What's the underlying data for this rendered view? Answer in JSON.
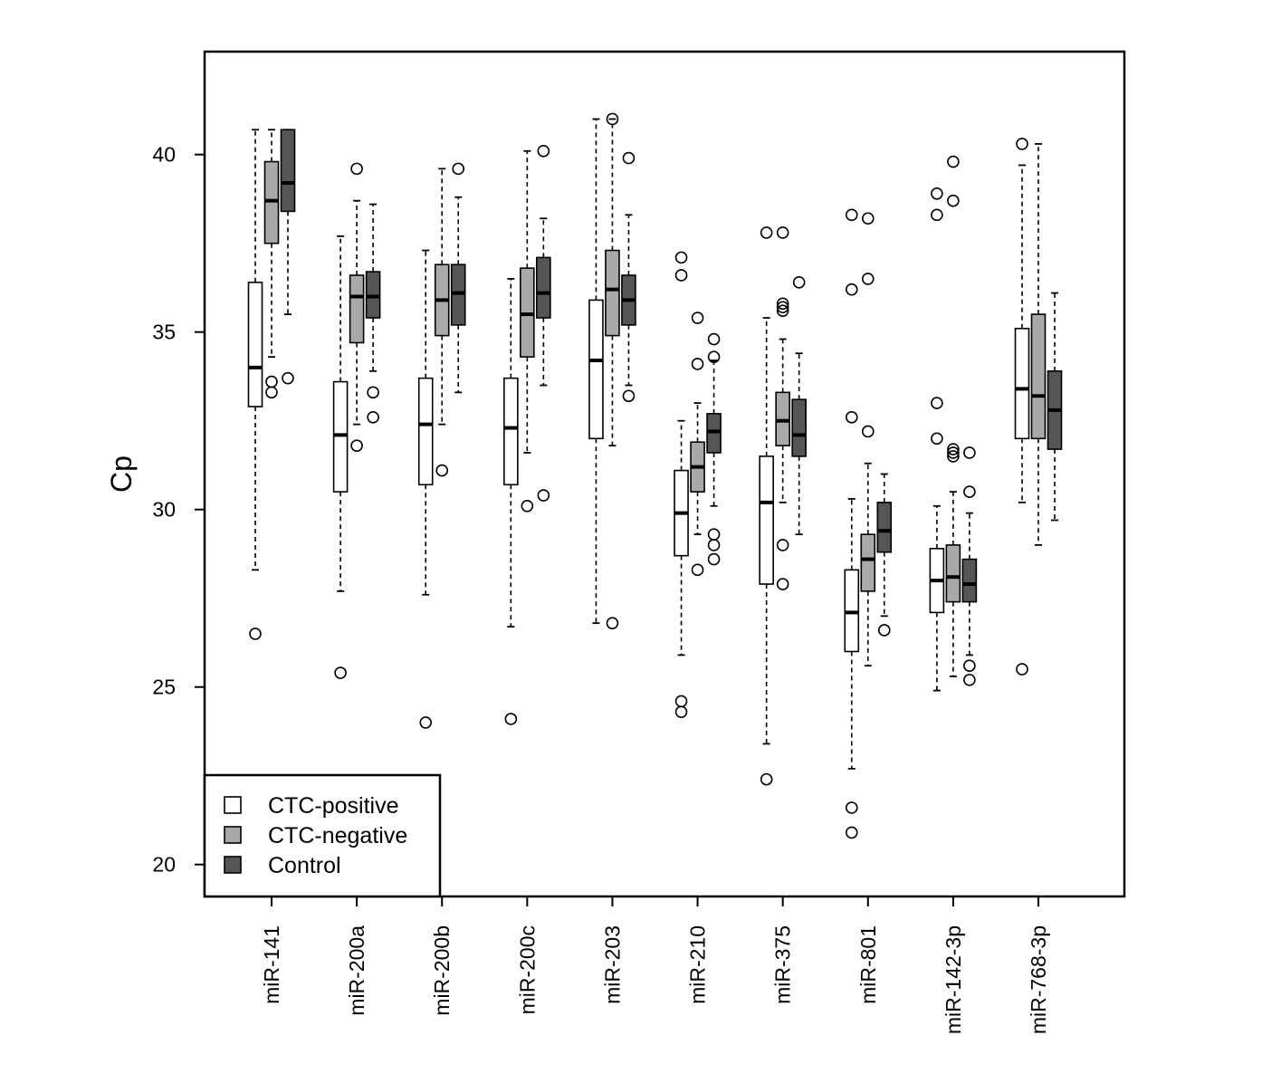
{
  "chart_data": {
    "type": "boxplot",
    "title": "",
    "xlabel": "",
    "ylabel": "Cp",
    "ylim": [
      19.1,
      42.9
    ],
    "yticks": [
      20,
      25,
      30,
      35,
      40
    ],
    "grid": false,
    "legend_position": "bottom-left",
    "categories": [
      "miR-141",
      "miR-200a",
      "miR-200b",
      "miR-200c",
      "miR-203",
      "miR-210",
      "miR-375",
      "miR-801",
      "miR-142-3p",
      "miR-768-3p"
    ],
    "series": [
      {
        "name": "CTC-positive",
        "color": "#ffffff",
        "boxes": [
          {
            "whislo": 28.3,
            "q1": 32.9,
            "med": 34.0,
            "q3": 36.4,
            "whishi": 40.7,
            "fliers": [
              26.5
            ]
          },
          {
            "whislo": 27.7,
            "q1": 30.5,
            "med": 32.1,
            "q3": 33.6,
            "whishi": 37.7,
            "fliers": [
              25.4
            ]
          },
          {
            "whislo": 27.6,
            "q1": 30.7,
            "med": 32.4,
            "q3": 33.7,
            "whishi": 37.3,
            "fliers": [
              24.0
            ]
          },
          {
            "whislo": 26.7,
            "q1": 30.7,
            "med": 32.3,
            "q3": 33.7,
            "whishi": 36.5,
            "fliers": [
              24.1
            ]
          },
          {
            "whislo": 26.8,
            "q1": 32.0,
            "med": 34.2,
            "q3": 35.9,
            "whishi": 41.0,
            "fliers": []
          },
          {
            "whislo": 25.9,
            "q1": 28.7,
            "med": 29.9,
            "q3": 31.1,
            "whishi": 32.5,
            "fliers": [
              24.6,
              24.3,
              36.6,
              37.1
            ]
          },
          {
            "whislo": 23.4,
            "q1": 27.9,
            "med": 30.2,
            "q3": 31.5,
            "whishi": 35.4,
            "fliers": [
              22.4,
              37.8
            ]
          },
          {
            "whislo": 22.7,
            "q1": 26.0,
            "med": 27.1,
            "q3": 28.3,
            "whishi": 30.3,
            "fliers": [
              21.6,
              20.9,
              32.6,
              36.2,
              38.3
            ]
          },
          {
            "whislo": 24.9,
            "q1": 27.1,
            "med": 28.0,
            "q3": 28.9,
            "whishi": 30.1,
            "fliers": [
              32.0,
              33.0,
              38.3,
              38.9
            ]
          },
          {
            "whislo": 30.2,
            "q1": 32.0,
            "med": 33.4,
            "q3": 35.1,
            "whishi": 39.7,
            "fliers": [
              25.5,
              40.3
            ]
          }
        ]
      },
      {
        "name": "CTC-negative",
        "color": "#a9a9a9",
        "boxes": [
          {
            "whislo": 34.3,
            "q1": 37.5,
            "med": 38.7,
            "q3": 39.8,
            "whishi": 40.7,
            "fliers": [
              33.6,
              33.3
            ]
          },
          {
            "whislo": 32.4,
            "q1": 34.7,
            "med": 36.0,
            "q3": 36.6,
            "whishi": 38.7,
            "fliers": [
              31.8,
              39.6
            ]
          },
          {
            "whislo": 32.4,
            "q1": 34.9,
            "med": 35.9,
            "q3": 36.9,
            "whishi": 39.6,
            "fliers": [
              31.1
            ]
          },
          {
            "whislo": 31.6,
            "q1": 34.3,
            "med": 35.5,
            "q3": 36.8,
            "whishi": 40.1,
            "fliers": [
              30.1
            ]
          },
          {
            "whislo": 31.8,
            "q1": 34.9,
            "med": 36.2,
            "q3": 37.3,
            "whishi": 41.0,
            "fliers": [
              26.8,
              41.0
            ]
          },
          {
            "whislo": 29.3,
            "q1": 30.5,
            "med": 31.2,
            "q3": 31.9,
            "whishi": 33.0,
            "fliers": [
              28.3,
              34.1,
              35.4
            ]
          },
          {
            "whislo": 30.2,
            "q1": 31.8,
            "med": 32.5,
            "q3": 33.3,
            "whishi": 34.8,
            "fliers": [
              29.0,
              27.9,
              35.6,
              35.7,
              35.8,
              37.8
            ]
          },
          {
            "whislo": 25.6,
            "q1": 27.7,
            "med": 28.6,
            "q3": 29.3,
            "whishi": 31.3,
            "fliers": [
              32.2,
              36.5,
              38.2
            ]
          },
          {
            "whislo": 25.3,
            "q1": 27.4,
            "med": 28.1,
            "q3": 29.0,
            "whishi": 30.5,
            "fliers": [
              31.5,
              31.6,
              31.7,
              38.7,
              39.8
            ]
          },
          {
            "whislo": 29.0,
            "q1": 32.0,
            "med": 33.2,
            "q3": 35.5,
            "whishi": 40.3,
            "fliers": []
          }
        ]
      },
      {
        "name": "Control",
        "color": "#555555",
        "boxes": [
          {
            "whislo": 35.5,
            "q1": 38.4,
            "med": 39.2,
            "q3": 40.7,
            "whishi": 40.7,
            "fliers": [
              33.7
            ]
          },
          {
            "whislo": 33.9,
            "q1": 35.4,
            "med": 36.0,
            "q3": 36.7,
            "whishi": 38.6,
            "fliers": [
              33.3,
              32.6
            ]
          },
          {
            "whislo": 33.3,
            "q1": 35.2,
            "med": 36.1,
            "q3": 36.9,
            "whishi": 38.8,
            "fliers": [
              39.6
            ]
          },
          {
            "whislo": 33.5,
            "q1": 35.4,
            "med": 36.1,
            "q3": 37.1,
            "whishi": 38.2,
            "fliers": [
              30.4,
              40.1
            ]
          },
          {
            "whislo": 33.5,
            "q1": 35.2,
            "med": 35.9,
            "q3": 36.6,
            "whishi": 38.3,
            "fliers": [
              33.2,
              39.9
            ]
          },
          {
            "whislo": 30.1,
            "q1": 31.6,
            "med": 32.2,
            "q3": 32.7,
            "whishi": 34.2,
            "fliers": [
              29.3,
              29.0,
              28.6,
              34.3,
              34.8
            ]
          },
          {
            "whislo": 29.3,
            "q1": 31.5,
            "med": 32.1,
            "q3": 33.1,
            "whishi": 34.4,
            "fliers": [
              36.4
            ]
          },
          {
            "whislo": 27.0,
            "q1": 28.8,
            "med": 29.4,
            "q3": 30.2,
            "whishi": 31.0,
            "fliers": [
              26.6
            ]
          },
          {
            "whislo": 25.9,
            "q1": 27.4,
            "med": 27.9,
            "q3": 28.6,
            "whishi": 29.9,
            "fliers": [
              25.6,
              25.2,
              30.5,
              31.6
            ]
          },
          {
            "whislo": 29.7,
            "q1": 31.7,
            "med": 32.8,
            "q3": 33.9,
            "whishi": 36.1,
            "fliers": []
          }
        ]
      }
    ]
  }
}
